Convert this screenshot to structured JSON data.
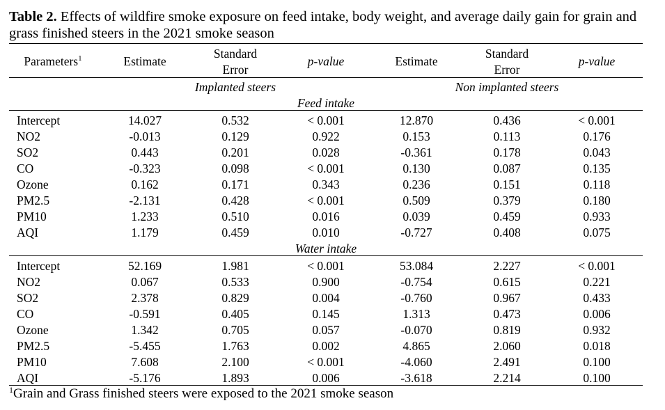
{
  "caption": {
    "label": "Table 2.",
    "text": " Effects of wildfire smoke exposure on feed intake, body weight, and average daily gain for grain and grass finished steers in the 2021 smoke season"
  },
  "header": {
    "parameters": "Parameters",
    "parameters_sup": "1",
    "estimate": "Estimate",
    "std_error_line1": "Standard",
    "std_error_line2": "Error",
    "p_value": "p-value"
  },
  "groups": {
    "implanted": "Implanted steers",
    "non_implanted": "Non implanted steers"
  },
  "sections": [
    {
      "title": "Feed intake",
      "rows": [
        {
          "param": "Intercept",
          "vals": [
            "14.027",
            "0.532",
            "< 0.001",
            "12.870",
            "0.436",
            "< 0.001"
          ]
        },
        {
          "param": "NO2",
          "vals": [
            "-0.013",
            "0.129",
            "0.922",
            "0.153",
            "0.113",
            "0.176"
          ]
        },
        {
          "param": "SO2",
          "vals": [
            "0.443",
            "0.201",
            "0.028",
            "-0.361",
            "0.178",
            "0.043"
          ]
        },
        {
          "param": "CO",
          "vals": [
            "-0.323",
            "0.098",
            "< 0.001",
            "0.130",
            "0.087",
            "0.135"
          ]
        },
        {
          "param": "Ozone",
          "vals": [
            "0.162",
            "0.171",
            "0.343",
            "0.236",
            "0.151",
            "0.118"
          ]
        },
        {
          "param": "PM2.5",
          "vals": [
            "-2.131",
            "0.428",
            "< 0.001",
            "0.509",
            "0.379",
            "0.180"
          ]
        },
        {
          "param": "PM10",
          "vals": [
            "1.233",
            "0.510",
            "0.016",
            "0.039",
            "0.459",
            "0.933"
          ]
        },
        {
          "param": "AQI",
          "vals": [
            "1.179",
            "0.459",
            "0.010",
            "-0.727",
            "0.408",
            "0.075"
          ]
        }
      ]
    },
    {
      "title": "Water intake",
      "rows": [
        {
          "param": "Intercept",
          "vals": [
            "52.169",
            "1.981",
            "< 0.001",
            "53.084",
            "2.227",
            "< 0.001"
          ]
        },
        {
          "param": "NO2",
          "vals": [
            "0.067",
            "0.533",
            "0.900",
            "-0.754",
            "0.615",
            "0.221"
          ]
        },
        {
          "param": "SO2",
          "vals": [
            "2.378",
            "0.829",
            "0.004",
            "-0.760",
            "0.967",
            "0.433"
          ]
        },
        {
          "param": "CO",
          "vals": [
            "-0.591",
            "0.405",
            "0.145",
            "1.313",
            "0.473",
            "0.006"
          ]
        },
        {
          "param": "Ozone",
          "vals": [
            "1.342",
            "0.705",
            "0.057",
            "-0.070",
            "0.819",
            "0.932"
          ]
        },
        {
          "param": "PM2.5",
          "vals": [
            "-5.455",
            "1.763",
            "0.002",
            "4.865",
            "2.060",
            "0.018"
          ]
        },
        {
          "param": "PM10",
          "vals": [
            "7.608",
            "2.100",
            "< 0.001",
            "-4.060",
            "2.491",
            "0.100"
          ]
        },
        {
          "param": "AQI",
          "vals": [
            "-5.176",
            "1.893",
            "0.006",
            "-3.618",
            "2.214",
            "0.100"
          ]
        }
      ]
    }
  ],
  "footnote": {
    "marker": "1",
    "text": "Grain and Grass finished steers were exposed to the 2021 smoke season"
  }
}
